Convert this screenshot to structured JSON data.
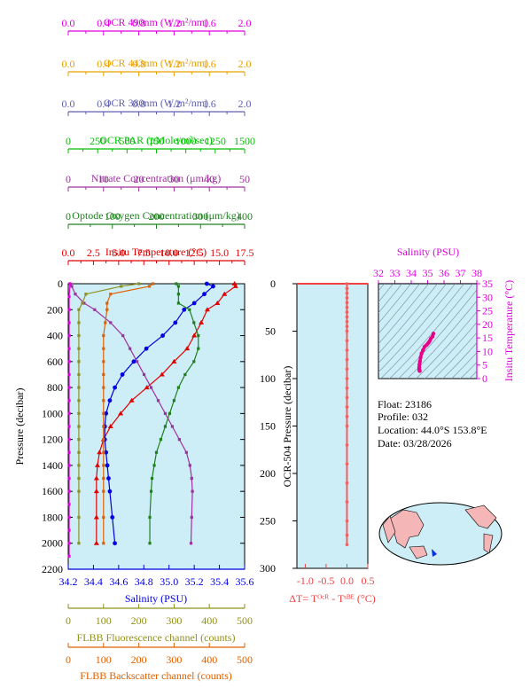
{
  "top_axes": [
    {
      "id": "ocr490",
      "label": "OCR 490nm (W/m²/nm)",
      "ticks": [
        "0.0",
        "0.4",
        "0.8",
        "1.2",
        "1.6",
        "2.0"
      ],
      "color": "#e000e0"
    },
    {
      "id": "ocr443",
      "label": "OCR 443nm (W/m²/nm)",
      "ticks": [
        "0.0",
        "0.4",
        "0.8",
        "1.2",
        "1.6",
        "2.0"
      ],
      "color": "#e8a000"
    },
    {
      "id": "ocr380",
      "label": "OCR 380nm (W/m²/nm)",
      "ticks": [
        "0.0",
        "0.4",
        "0.8",
        "1.2",
        "1.6",
        "2.0"
      ],
      "color": "#6060b0"
    },
    {
      "id": "ocrpar",
      "label": "OCR PAR (μMole/m²/sec)",
      "ticks": [
        "0",
        "250",
        "500",
        "750",
        "1000",
        "1250",
        "1500"
      ],
      "color": "#00c000"
    },
    {
      "id": "nitrate",
      "label": "Nitrate Concentration (μm/kg)",
      "ticks": [
        "0",
        "10",
        "20",
        "30",
        "40",
        "50"
      ],
      "color": "#a030a0"
    },
    {
      "id": "oxygen",
      "label": "Optode Oxygen Concentration (μm/kg)",
      "ticks": [
        "0",
        "100",
        "200",
        "300",
        "400"
      ],
      "color": "#208020"
    },
    {
      "id": "temp",
      "label": "Insitu Temperature (°C)",
      "ticks": [
        "0.0",
        "2.5",
        "5.0",
        "7.5",
        "10.0",
        "12.5",
        "15.0",
        "17.5"
      ],
      "color": "#e00000"
    }
  ],
  "bottom_axes": [
    {
      "id": "salinity",
      "label": "Salinity (PSU)",
      "ticks": [
        "34.2",
        "34.4",
        "34.6",
        "34.8",
        "35.0",
        "35.2",
        "35.4",
        "35.6"
      ],
      "color": "#0000e0"
    },
    {
      "id": "flbbfl",
      "label": "FLBB Fluorescence channel (counts)",
      "ticks": [
        "0",
        "100",
        "200",
        "300",
        "400",
        "500"
      ],
      "color": "#909020"
    },
    {
      "id": "flbbbs",
      "label": "FLBB Backscatter channel (counts)",
      "ticks": [
        "0",
        "100",
        "200",
        "300",
        "400",
        "500"
      ],
      "color": "#e06000"
    }
  ],
  "main_plot": {
    "ylabel": "Pressure (decibar)",
    "yticks": [
      "0",
      "200",
      "400",
      "600",
      "800",
      "1000",
      "1200",
      "1400",
      "1600",
      "1800",
      "2000",
      "2200"
    ]
  },
  "dt_plot": {
    "ylabel": "OCR-504 Pressure (decibar)",
    "yticks": [
      "0",
      "50",
      "100",
      "150",
      "200",
      "250",
      "300"
    ],
    "xticks": [
      "-1.0",
      "-0.5",
      "0.0",
      "0.5"
    ],
    "xlabel": "ΔT= Tᴼᶜᴿ - Tˢᴮᴱ (°C)"
  },
  "ts_plot": {
    "title": "Salinity (PSU)",
    "xticks": [
      "32",
      "33",
      "34",
      "35",
      "36",
      "37",
      "38"
    ],
    "yticks": [
      "0",
      "5",
      "10",
      "15",
      "20",
      "25",
      "30",
      "35"
    ],
    "ylabel": "Insitu Temperature (°C)"
  },
  "info": {
    "float": "Float:  23186",
    "profile": "Profile:  032",
    "location": "Location:  44.0°S  153.8°E",
    "date": "Date:  03/28/2026"
  },
  "colors": {
    "plot_bg": "#cdeef6",
    "axis": "#000000",
    "dt_line": "#f06060",
    "ts_points": "#e8008a"
  },
  "chart_data": [
    {
      "type": "line",
      "title": "",
      "xlabel": "Insitu Temperature (°C)",
      "ylabel": "Pressure (decibar)",
      "ylim": [
        2200,
        0
      ],
      "series": [
        {
          "name": "Insitu Temperature (°C)",
          "xlim": [
            0,
            17.5
          ],
          "x": [
            16.5,
            16.6,
            15.5,
            14.8,
            13.8,
            13.2,
            12.5,
            11.8,
            10.5,
            9.3,
            7.8,
            6.3,
            5.2,
            4.2,
            3.5,
            3.1,
            2.9,
            2.8,
            2.8,
            2.8,
            2.8
          ],
          "y": [
            0,
            20,
            80,
            150,
            200,
            300,
            400,
            500,
            600,
            700,
            800,
            900,
            1000,
            1100,
            1200,
            1300,
            1400,
            1500,
            1600,
            1800,
            2000
          ]
        },
        {
          "name": "Salinity (PSU)",
          "xlim": [
            34.2,
            35.6
          ],
          "x": [
            35.3,
            35.35,
            35.28,
            35.2,
            35.12,
            35.05,
            34.95,
            34.82,
            34.72,
            34.63,
            34.57,
            34.53,
            34.5,
            34.49,
            34.49,
            34.5,
            34.51,
            34.52,
            34.53,
            34.55,
            34.57
          ],
          "y": [
            0,
            20,
            80,
            150,
            200,
            300,
            400,
            500,
            600,
            700,
            800,
            900,
            1000,
            1100,
            1200,
            1300,
            1400,
            1500,
            1600,
            1800,
            2000
          ]
        },
        {
          "name": "Optode Oxygen Concentration (μm/kg)",
          "xlim": [
            0,
            400
          ],
          "x": [
            245,
            250,
            250,
            250,
            275,
            285,
            295,
            295,
            285,
            265,
            250,
            240,
            230,
            220,
            210,
            200,
            195,
            190,
            188,
            185,
            185
          ],
          "y": [
            0,
            20,
            80,
            150,
            200,
            300,
            400,
            500,
            600,
            700,
            800,
            900,
            1000,
            1100,
            1200,
            1300,
            1400,
            1500,
            1600,
            1800,
            2000
          ]
        },
        {
          "name": "Nitrate Concentration (μm/kg)",
          "xlim": [
            0,
            50
          ],
          "x": [
            0.5,
            1.0,
            2.0,
            4.5,
            7.5,
            12.0,
            15.5,
            17.5,
            19.5,
            21.5,
            23.5,
            25.5,
            27.5,
            29.5,
            31.5,
            33.5,
            34.5,
            35.0,
            35.2,
            35.0,
            34.8
          ],
          "y": [
            0,
            20,
            80,
            150,
            200,
            300,
            400,
            500,
            600,
            700,
            800,
            900,
            1000,
            1100,
            1200,
            1300,
            1400,
            1500,
            1600,
            1800,
            2000
          ]
        },
        {
          "name": "FLBB Fluorescence channel (counts)",
          "xlim": [
            0,
            500
          ],
          "x": [
            200,
            150,
            50,
            40,
            30,
            30,
            30,
            30,
            30,
            30,
            30,
            30,
            30,
            30,
            30,
            30,
            30,
            30,
            30,
            30,
            30
          ],
          "y": [
            0,
            20,
            80,
            150,
            200,
            300,
            400,
            500,
            600,
            700,
            800,
            900,
            1000,
            1100,
            1200,
            1300,
            1400,
            1500,
            1600,
            1800,
            2000
          ]
        },
        {
          "name": "FLBB Backscatter channel (counts)",
          "xlim": [
            0,
            500
          ],
          "x": [
            240,
            230,
            120,
            110,
            110,
            105,
            100,
            100,
            100,
            100,
            100,
            100,
            100,
            100,
            100,
            100,
            100,
            100,
            100,
            100,
            100
          ],
          "y": [
            0,
            20,
            80,
            150,
            200,
            300,
            400,
            500,
            600,
            700,
            800,
            900,
            1000,
            1100,
            1200,
            1300,
            1400,
            1500,
            1600,
            1800,
            2000
          ]
        },
        {
          "name": "OCR 490nm (W/m²/nm)",
          "xlim": [
            0,
            2.0
          ],
          "x": [
            0.02,
            0.01,
            0.01,
            0.01,
            0.01,
            0.01,
            0.01,
            0.01,
            0.01,
            0.01,
            0.01,
            0.01,
            0.01,
            0.01,
            0.01,
            0.01,
            0.01,
            0.01,
            0.01,
            0.01,
            0.01,
            0.01
          ],
          "y": [
            0,
            100,
            200,
            300,
            400,
            500,
            600,
            700,
            800,
            900,
            1000,
            1100,
            1200,
            1300,
            1400,
            1500,
            1600,
            1700,
            1800,
            1900,
            2000,
            2100
          ]
        }
      ]
    },
    {
      "type": "line",
      "title": "",
      "xlabel": "ΔT= Tᴼᶜᴿ - Tˢᴮᴱ (°C)",
      "ylabel": "OCR-504 Pressure (decibar)",
      "xlim": [
        -1.2,
        0.5
      ],
      "ylim": [
        300,
        0
      ],
      "x": [
        0,
        0,
        0,
        0,
        0,
        0,
        0,
        0,
        0,
        0,
        0,
        0,
        0,
        0,
        0,
        0,
        0,
        0,
        0,
        0,
        0,
        0,
        0,
        0,
        0,
        0,
        0,
        0
      ],
      "y": [
        0,
        5,
        10,
        15,
        20,
        25,
        30,
        35,
        40,
        45,
        50,
        60,
        70,
        80,
        90,
        100,
        110,
        120,
        130,
        140,
        150,
        170,
        190,
        210,
        230,
        250,
        265,
        275
      ]
    },
    {
      "type": "scatter",
      "title": "Salinity (PSU)",
      "xlabel": "Salinity (PSU)",
      "ylabel": "Insitu Temperature (°C)",
      "xlim": [
        32,
        38
      ],
      "ylim": [
        0,
        35
      ],
      "x": [
        35.35,
        35.3,
        35.2,
        35.12,
        35.05,
        34.95,
        34.82,
        34.72,
        34.63,
        34.57,
        34.53,
        34.5,
        34.49,
        34.49,
        34.5,
        34.51,
        34.52
      ],
      "y": [
        16.6,
        15.5,
        14.8,
        13.8,
        13.2,
        12.5,
        11.8,
        10.5,
        9.3,
        7.8,
        6.3,
        5.2,
        4.2,
        3.5,
        3.1,
        2.9,
        2.8
      ]
    }
  ]
}
